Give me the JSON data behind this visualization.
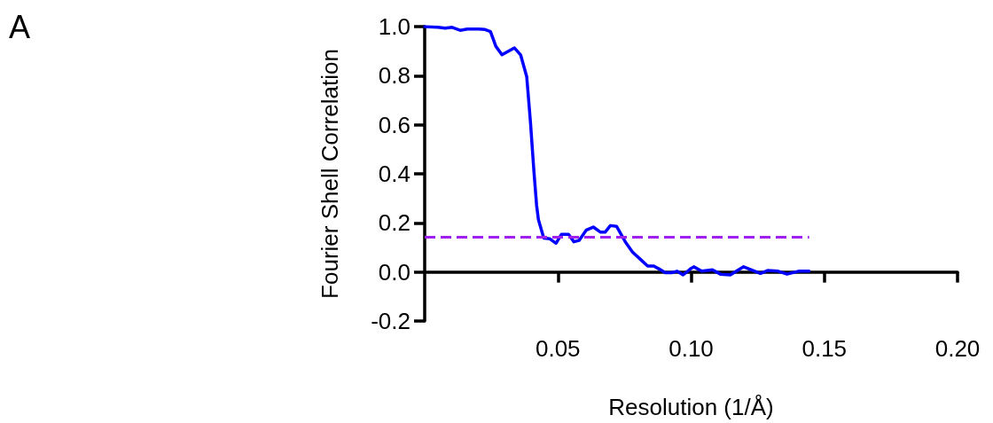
{
  "chart_data": {
    "type": "line",
    "xlabel": "Resolution (1/Å)",
    "ylabel": "Fourier Shell Correlation",
    "annotations": [
      "A"
    ],
    "x": [
      0,
      0.005,
      0.0077,
      0.0103,
      0.0133,
      0.016,
      0.0203,
      0.0227,
      0.0247,
      0.0267,
      0.029,
      0.0337,
      0.036,
      0.0383,
      0.0397,
      0.041,
      0.042,
      0.0427,
      0.0447,
      0.047,
      0.0493,
      0.0513,
      0.054,
      0.056,
      0.058,
      0.0607,
      0.0633,
      0.066,
      0.0677,
      0.0697,
      0.072,
      0.0753,
      0.078,
      0.0813,
      0.0837,
      0.086,
      0.088,
      0.0903,
      0.0927,
      0.0947,
      0.097,
      0.0997,
      0.101,
      0.104,
      0.108,
      0.111,
      0.1147,
      0.1197,
      0.126,
      0.1287,
      0.1327,
      0.136,
      0.1403,
      0.1443
    ],
    "series": [
      {
        "color": "#0000ff",
        "values": [
          1.0,
          0.997,
          0.994,
          0.997,
          0.985,
          0.99,
          0.99,
          0.988,
          0.98,
          0.92,
          0.885,
          0.913,
          0.885,
          0.796,
          0.611,
          0.41,
          0.272,
          0.213,
          0.138,
          0.135,
          0.117,
          0.153,
          0.153,
          0.123,
          0.129,
          0.171,
          0.183,
          0.162,
          0.162,
          0.189,
          0.186,
          0.123,
          0.081,
          0.048,
          0.024,
          0.024,
          0.012,
          -0.003,
          -0.003,
          0.003,
          -0.012,
          0.012,
          0.021,
          0.003,
          0.009,
          -0.009,
          -0.012,
          0.021,
          -0.006,
          0.006,
          0.003,
          -0.009,
          0.003,
          0.003
        ]
      }
    ],
    "xlim": [
      0,
      0.2
    ],
    "ylim": [
      -0.2,
      1.0
    ],
    "xticks": [
      0.05,
      {
        "value": 0.1,
        "label": "0.10"
      },
      0.15,
      {
        "value": 0.2,
        "label": "0.20"
      }
    ],
    "yticks": [
      {
        "value": -0.2,
        "label": "-0.2"
      },
      {
        "value": 0,
        "label": "0.0"
      },
      0.2,
      0.4,
      0.6,
      0.8,
      {
        "value": 1,
        "label": "1.0"
      }
    ],
    "ref_lines": [
      {
        "axis": "y",
        "value": 0.143,
        "color": "#a020f0",
        "line_style": "dashed"
      }
    ],
    "marker": "none",
    "line_style": "solid"
  }
}
